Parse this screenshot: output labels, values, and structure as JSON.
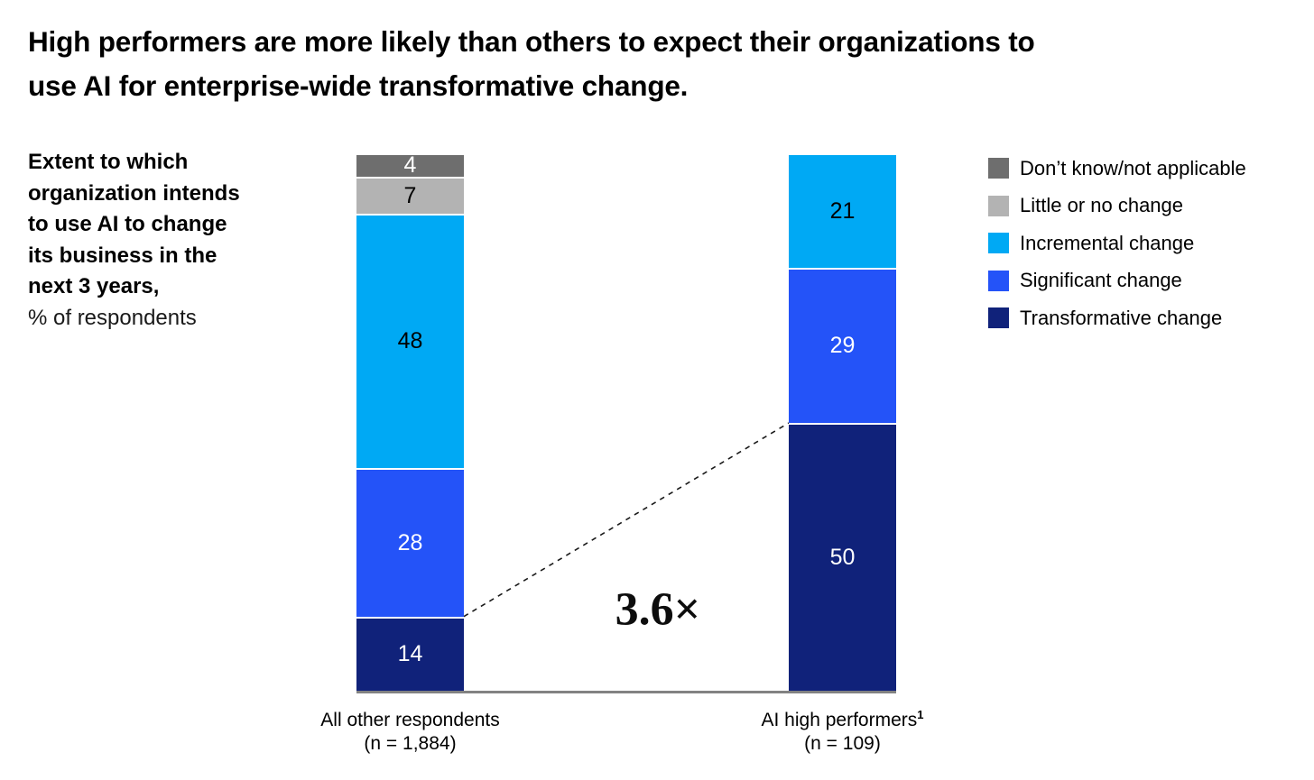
{
  "header": {
    "title_lines": [
      "High performers are more likely than others to expect their organizations to",
      "use AI for enterprise-wide transformative change."
    ]
  },
  "description": {
    "bold_lines": [
      "Extent to which",
      "organization intends",
      "to use AI to change",
      "its business in the",
      "next 3 years,"
    ],
    "unit_line": "% of respondents"
  },
  "chart_data": {
    "type": "bar",
    "subtype": "stacked-vertical-100pct",
    "title": "Extent to which organization intends to use AI to change its business in the next 3 years, % of respondents",
    "axis_range": [
      0,
      100
    ],
    "gridlines": false,
    "legend_position": "top-right",
    "categories": [
      {
        "label": "All other respondents",
        "superscript": "",
        "n_label": "(n = 1,884)"
      },
      {
        "label": "AI high performers",
        "superscript": "1",
        "n_label": "(n = 109)"
      }
    ],
    "series": [
      {
        "name": "Don’t know/not applicable",
        "color": "#6e6e6e",
        "label_color": "#ffffff",
        "values": [
          4,
          null
        ]
      },
      {
        "name": "Little or no change",
        "color": "#b3b3b3",
        "label_color": "#000000",
        "values": [
          7,
          null
        ]
      },
      {
        "name": "Incremental change",
        "color": "#00a9f4",
        "label_color": "#000000",
        "values": [
          48,
          21
        ]
      },
      {
        "name": "Significant change",
        "color": "#2453f8",
        "label_color": "#ffffff",
        "values": [
          28,
          29
        ]
      },
      {
        "name": "Transformative change",
        "color": "#10227a",
        "label_color": "#ffffff",
        "values": [
          14,
          50
        ]
      }
    ],
    "annotation": {
      "label": "3.6×",
      "meaning": "ratio of Transformative change between AI high performers and all other respondents"
    },
    "connector": {
      "from_series": "Transformative change",
      "style": "dashed"
    }
  }
}
